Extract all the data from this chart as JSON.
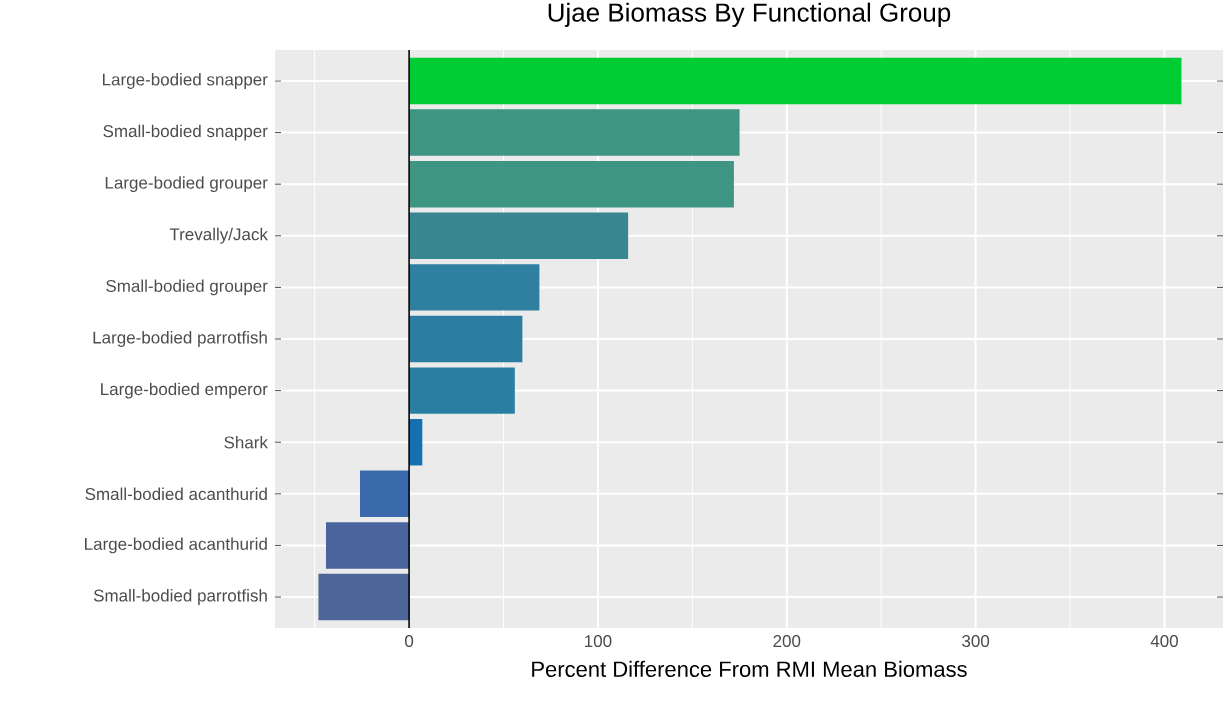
{
  "chart_data": {
    "type": "bar",
    "orientation": "horizontal",
    "title": "Ujae Biomass By Functional Group",
    "xlabel": "Percent Difference From RMI Mean Biomass",
    "categories": [
      "Large-bodied snapper",
      "Small-bodied snapper",
      "Large-bodied grouper",
      "Trevally/Jack",
      "Small-bodied grouper",
      "Large-bodied parrotfish",
      "Large-bodied emperor",
      "Shark",
      "Small-bodied acanthurid",
      "Large-bodied acanthurid",
      "Small-bodied parrotfish"
    ],
    "values": [
      409,
      175,
      172,
      116,
      69,
      60,
      56,
      7,
      -26,
      -44,
      -48
    ],
    "colors": [
      "#00cc33",
      "#3f9584",
      "#3f9584",
      "#378690",
      "#2e7fa0",
      "#2b7ea2",
      "#2a7fa1",
      "#1470b0",
      "#3b6aac",
      "#4a649e",
      "#4e6598"
    ],
    "xlim": [
      -71,
      431
    ],
    "xticks": [
      0,
      100,
      200,
      300,
      400
    ],
    "grid": true,
    "ref_lines": [
      {
        "axis": "x",
        "value": 0,
        "color": "#000000"
      }
    ]
  }
}
